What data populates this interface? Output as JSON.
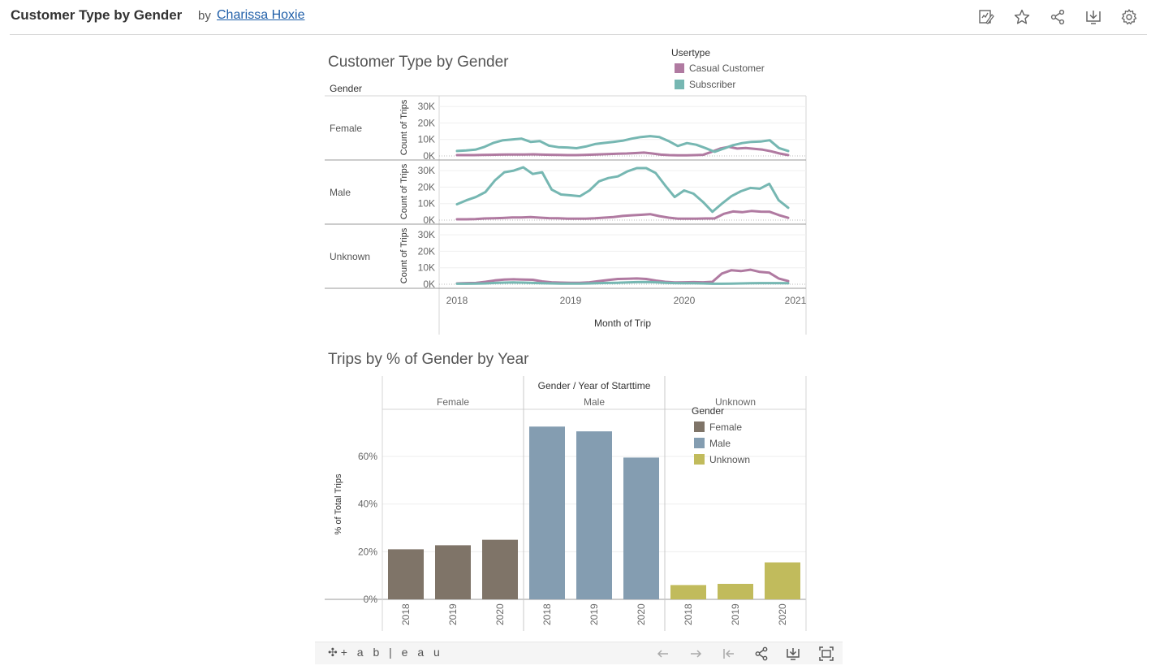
{
  "header": {
    "title": "Customer Type by Gender",
    "by": "by",
    "author": "Charissa Hoxie",
    "icons": [
      "edit-icon",
      "favorite-star-icon",
      "share-icon",
      "download-icon",
      "settings-gear-icon"
    ]
  },
  "chart_data": [
    {
      "type": "line",
      "title": "Customer Type by Gender",
      "row_header": "Gender",
      "xlabel": "Month of Trip",
      "ylabel": "Count of Trips",
      "x_ticks": [
        "2018",
        "2019",
        "2020",
        "2021"
      ],
      "y_ticks": [
        "30K",
        "20K",
        "10K",
        "0K"
      ],
      "ylim": [
        0,
        33000
      ],
      "legend_title": "Usertype",
      "legend_position": "top-right",
      "series_names": [
        "Casual Customer",
        "Subscriber"
      ],
      "series_colors": [
        "#b07aa1",
        "#76b7b2"
      ],
      "panels": [
        {
          "label": "Female",
          "series": [
            {
              "name": "Casual Customer",
              "values": [
                500,
                500,
                500,
                600,
                700,
                800,
                900,
                900,
                900,
                1000,
                800,
                700,
                600,
                500,
                500,
                600,
                800,
                1000,
                1200,
                1400,
                1500,
                1700,
                2000,
                1500,
                800,
                500,
                400,
                400,
                500,
                700,
                2500,
                4500,
                5500,
                4500,
                4800,
                4300,
                3800,
                2800,
                1500,
                500
              ]
            },
            {
              "name": "Subscriber",
              "values": [
                3000,
                3300,
                3800,
                5500,
                8000,
                9500,
                10000,
                10500,
                8500,
                9000,
                6200,
                5300,
                5100,
                4700,
                5700,
                7200,
                7900,
                8500,
                9200,
                10500,
                11500,
                12000,
                11500,
                9000,
                6000,
                7800,
                6800,
                4800,
                2500,
                4500,
                6500,
                7800,
                8500,
                8700,
                9500,
                4800,
                3000
              ]
            }
          ]
        },
        {
          "label": "Male",
          "series": [
            {
              "name": "Casual Customer",
              "values": [
                500,
                500,
                600,
                1000,
                1100,
                1300,
                1600,
                1600,
                1800,
                1500,
                1200,
                1100,
                900,
                900,
                900,
                1100,
                1500,
                1800,
                2500,
                2900,
                3200,
                3600,
                2400,
                1500,
                900,
                900,
                900,
                1000,
                1000,
                3800,
                5200,
                4800,
                5500,
                5100,
                5000,
                3000,
                1400
              ]
            },
            {
              "name": "Subscriber",
              "values": [
                9600,
                12000,
                14000,
                17000,
                24000,
                29000,
                30000,
                32000,
                28000,
                29000,
                18500,
                15500,
                15000,
                14500,
                18000,
                23500,
                25500,
                26500,
                29500,
                31500,
                31500,
                28500,
                21000,
                14000,
                18000,
                16000,
                11000,
                5000,
                10000,
                14500,
                17500,
                19500,
                19000,
                22000,
                12000,
                7500
              ]
            }
          ]
        },
        {
          "label": "Unknown",
          "series": [
            {
              "name": "Casual Customer",
              "values": [
                500,
                700,
                800,
                1500,
                2300,
                2800,
                3000,
                2800,
                2700,
                1700,
                1200,
                1000,
                900,
                900,
                1200,
                1900,
                2600,
                3200,
                3300,
                3500,
                3200,
                2200,
                1500,
                1100,
                1200,
                1300,
                1200,
                1500,
                6500,
                8500,
                8000,
                8800,
                7500,
                7000,
                3500,
                1900
              ]
            },
            {
              "name": "Subscriber",
              "values": [
                300,
                300,
                400,
                500,
                800,
                1000,
                1100,
                1000,
                800,
                600,
                500,
                400,
                400,
                400,
                500,
                700,
                800,
                900,
                1100,
                1300,
                1400,
                1200,
                900,
                700,
                600,
                600,
                500,
                300,
                300,
                400,
                500,
                600,
                700,
                700,
                700,
                600
              ]
            }
          ]
        }
      ]
    },
    {
      "type": "bar",
      "title": "Trips by % of Gender by Year",
      "header": "Gender / Year of Starttime",
      "ylabel": "% of Total Trips",
      "y_ticks": [
        "60%",
        "40%",
        "20%",
        "0%"
      ],
      "ylim": [
        0,
        76
      ],
      "legend_title": "Gender",
      "legend_position": "top-right",
      "groups": [
        {
          "label": "Female",
          "color": "#7f7468",
          "years": [
            "2018",
            "2019",
            "2020"
          ],
          "values": [
            21,
            22.7,
            25
          ]
        },
        {
          "label": "Male",
          "color": "#849db1",
          "years": [
            "2018",
            "2019",
            "2020"
          ],
          "values": [
            72.5,
            70.5,
            59.5
          ]
        },
        {
          "label": "Unknown",
          "color": "#c1bb5c",
          "years": [
            "2018",
            "2019",
            "2020"
          ],
          "values": [
            6,
            6.5,
            15.5
          ]
        }
      ]
    }
  ],
  "footer": {
    "logo_text": "+ a b | e a u",
    "icons": [
      "undo-arrow-icon",
      "redo-arrow-icon",
      "revert-icon",
      "share-icon",
      "download-icon",
      "fullscreen-icon"
    ]
  }
}
